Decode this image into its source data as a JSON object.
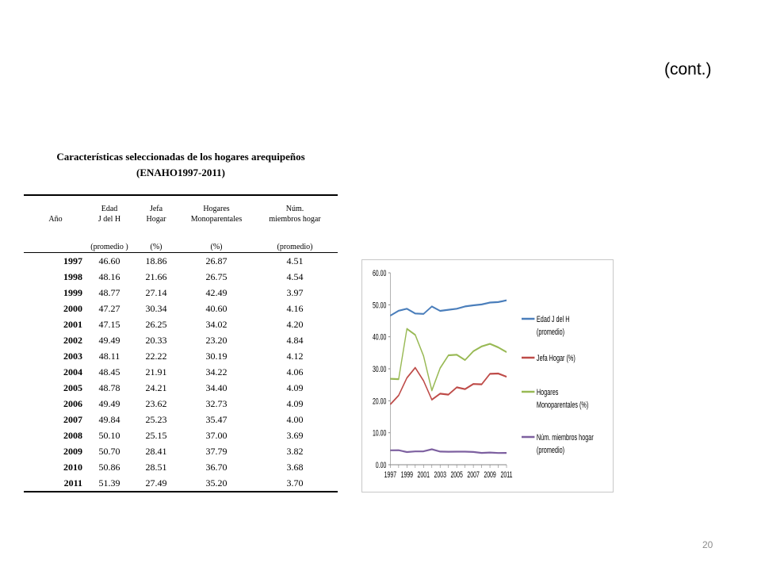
{
  "cont_label": "(cont.)",
  "page_number": "20",
  "table": {
    "title_line1": "Características seleccionadas de los hogares arequipeños",
    "title_line2": "(ENAHO1997-2011)",
    "header": {
      "row1": [
        "",
        "Edad",
        "Jefa",
        "Hogares",
        "Núm."
      ],
      "row2": [
        "Año",
        "J del H",
        "Hogar",
        "Monoparentales",
        "miembros hogar"
      ],
      "row3": [
        "",
        "(promedio )",
        "(%)",
        "(%)",
        "(promedio)"
      ]
    },
    "rows": [
      [
        "1997",
        "46.60",
        "18.86",
        "26.87",
        "4.51"
      ],
      [
        "1998",
        "48.16",
        "21.66",
        "26.75",
        "4.54"
      ],
      [
        "1999",
        "48.77",
        "27.14",
        "42.49",
        "3.97"
      ],
      [
        "2000",
        "47.27",
        "30.34",
        "40.60",
        "4.16"
      ],
      [
        "2001",
        "47.15",
        "26.25",
        "34.02",
        "4.20"
      ],
      [
        "2002",
        "49.49",
        "20.33",
        "23.20",
        "4.84"
      ],
      [
        "2003",
        "48.11",
        "22.22",
        "30.19",
        "4.12"
      ],
      [
        "2004",
        "48.45",
        "21.91",
        "34.22",
        "4.06"
      ],
      [
        "2005",
        "48.78",
        "24.21",
        "34.40",
        "4.09"
      ],
      [
        "2006",
        "49.49",
        "23.62",
        "32.73",
        "4.09"
      ],
      [
        "2007",
        "49.84",
        "25.23",
        "35.47",
        "4.00"
      ],
      [
        "2008",
        "50.10",
        "25.15",
        "37.00",
        "3.69"
      ],
      [
        "2009",
        "50.70",
        "28.41",
        "37.79",
        "3.82"
      ],
      [
        "2010",
        "50.86",
        "28.51",
        "36.70",
        "3.68"
      ],
      [
        "2011",
        "51.39",
        "27.49",
        "35.20",
        "3.70"
      ]
    ]
  },
  "chart_data": {
    "type": "line",
    "x": [
      1997,
      1998,
      1999,
      2000,
      2001,
      2002,
      2003,
      2004,
      2005,
      2006,
      2007,
      2008,
      2009,
      2010,
      2011
    ],
    "x_tick_labels": [
      "1997",
      "1999",
      "2001",
      "2003",
      "2005",
      "2007",
      "2009",
      "2011"
    ],
    "y_tick_labels": [
      "0.00",
      "10.00",
      "20.00",
      "30.00",
      "40.00",
      "50.00",
      "60.00"
    ],
    "ylim": [
      0,
      60
    ],
    "grid": false,
    "legend_position": "right",
    "series": [
      {
        "name_lines": [
          "Edad J del H",
          "(promedio)"
        ],
        "color": "#4a7ebb",
        "values": [
          46.6,
          48.16,
          48.77,
          47.27,
          47.15,
          49.49,
          48.11,
          48.45,
          48.78,
          49.49,
          49.84,
          50.1,
          50.7,
          50.86,
          51.39
        ]
      },
      {
        "name_lines": [
          "Jefa  Hogar (%)"
        ],
        "color": "#be4b48",
        "values": [
          18.86,
          21.66,
          27.14,
          30.34,
          26.25,
          20.33,
          22.22,
          21.91,
          24.21,
          23.62,
          25.23,
          25.15,
          28.41,
          28.51,
          27.49
        ]
      },
      {
        "name_lines": [
          "Hogares",
          "Monoparentales (%)"
        ],
        "color": "#98b954",
        "values": [
          26.87,
          26.75,
          42.49,
          40.6,
          34.02,
          23.2,
          30.19,
          34.22,
          34.4,
          32.73,
          35.47,
          37.0,
          37.79,
          36.7,
          35.2
        ]
      },
      {
        "name_lines": [
          "Núm. miembros hogar",
          "(promedio)"
        ],
        "color": "#7d60a0",
        "values": [
          4.51,
          4.54,
          3.97,
          4.16,
          4.2,
          4.84,
          4.12,
          4.06,
          4.09,
          4.09,
          4.0,
          3.69,
          3.82,
          3.68,
          3.7
        ]
      }
    ]
  }
}
